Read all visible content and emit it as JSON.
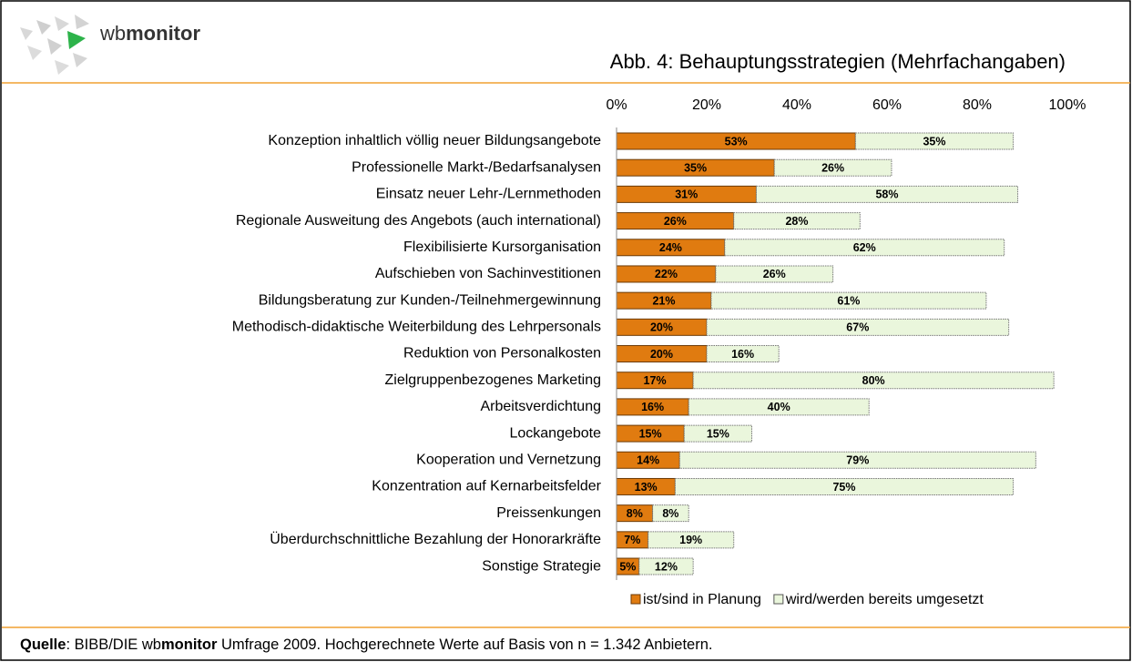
{
  "logo": {
    "prefix": "wb",
    "brand": "monitor"
  },
  "footer": {
    "label": "Quelle",
    "text1": ": BIBB/DIE wb",
    "brand": "monitor",
    "text2": " Umfrage 2009. Hochgerechnete Werte auf Basis von n = 1.342 Anbietern."
  },
  "chart_data": {
    "type": "stacked-barh",
    "title": "Abb. 4: Behauptungsstrategien (Mehrfachangaben)",
    "categories": [
      "Konzeption inhaltlich völlig neuer Bildungsangebote",
      "Professionelle Markt-/Bedarfsanalysen",
      "Einsatz neuer Lehr-/Lernmethoden",
      "Regionale Ausweitung des Angebots (auch international)",
      "Flexibilisierte Kursorganisation",
      "Aufschieben von Sachinvestitionen",
      "Bildungsberatung zur Kunden-/Teilnehmergewinnung",
      "Methodisch-didaktische Weiterbildung des Lehrpersonals",
      "Reduktion von Personalkosten",
      "Zielgruppenbezogenes Marketing",
      "Arbeitsverdichtung",
      "Lockangebote",
      "Kooperation und Vernetzung ",
      "Konzentration auf Kernarbeitsfelder",
      "Preissenkungen",
      "Überdurchschnittliche Bezahlung der Honorarkräfte",
      "Sonstige Strategie"
    ],
    "series": [
      {
        "name": "ist/sind in Planung",
        "color": "#e07b10",
        "values": [
          53,
          35,
          31,
          26,
          24,
          22,
          21,
          20,
          20,
          17,
          16,
          15,
          14,
          13,
          8,
          7,
          5
        ],
        "value_labels": [
          "53%",
          "35%",
          "31%",
          "26%",
          "24%",
          "22%",
          "21%",
          "20%",
          "20%",
          "17%",
          "16%",
          "15%",
          "14%",
          "13%",
          "8%",
          "7%",
          "5%"
        ]
      },
      {
        "name": "wird/werden bereits umgesetzt",
        "color": "#eaf6dc",
        "values": [
          35,
          26,
          58,
          28,
          62,
          26,
          61,
          67,
          16,
          80,
          40,
          15,
          79,
          75,
          8,
          19,
          12
        ],
        "value_labels": [
          "35%",
          "26%",
          "58%",
          "28%",
          "62%",
          "26%",
          "61%",
          "67%",
          "16%",
          "80%",
          "40%",
          "15%",
          "79%",
          "75%",
          "8%",
          "19%",
          "12%"
        ]
      }
    ],
    "xlim": [
      0,
      100
    ],
    "xticks": [
      {
        "value": 0,
        "label": "0%"
      },
      {
        "value": 20,
        "label": "20%"
      },
      {
        "value": 40,
        "label": "40%"
      },
      {
        "value": 60,
        "label": "60%"
      },
      {
        "value": 80,
        "label": "80%"
      },
      {
        "value": 100,
        "label": "100%"
      }
    ],
    "grid": false,
    "legend": "bottom"
  }
}
